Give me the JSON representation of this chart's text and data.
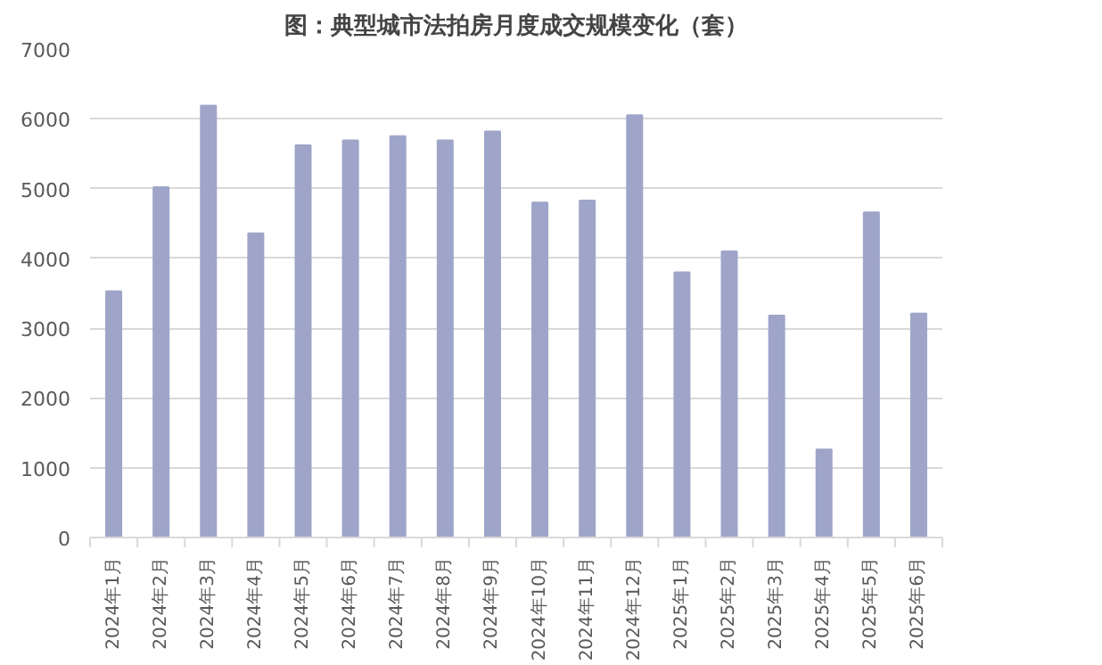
{
  "chart_data": {
    "type": "bar",
    "title": "图：典型城市法拍房月度成交规模变化（套）",
    "categories": [
      "2024年1月",
      "2024年2月",
      "2024年3月",
      "2024年4月",
      "2024年5月",
      "2024年6月",
      "2024年7月",
      "2024年8月",
      "2024年9月",
      "2024年10月",
      "2024年11月",
      "2024年12月",
      "2025年1月",
      "2025年2月",
      "2025年3月",
      "2025年4月",
      "2025年5月",
      "2025年6月"
    ],
    "values": [
      3530,
      5020,
      6190,
      4360,
      5620,
      5690,
      5750,
      5690,
      5820,
      4800,
      4830,
      6050,
      3800,
      4100,
      3180,
      1260,
      4660,
      3210
    ],
    "color": "#9ea5c8",
    "ylim": [
      0,
      7000
    ],
    "yticks": [
      0,
      1000,
      2000,
      3000,
      4000,
      5000,
      6000,
      7000
    ],
    "grid": "y"
  }
}
